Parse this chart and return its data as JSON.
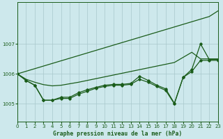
{
  "title": "Graphe pression niveau de la mer (hPa)",
  "bg_color": "#cde8ec",
  "grid_color": "#a8c8cc",
  "line_color": "#1a5c1a",
  "xlim": [
    0,
    23
  ],
  "ylim": [
    1004.4,
    1008.4
  ],
  "yticks": [
    1005,
    1006,
    1007
  ],
  "xticks": [
    0,
    1,
    2,
    3,
    4,
    5,
    6,
    7,
    8,
    9,
    10,
    11,
    12,
    13,
    14,
    15,
    16,
    17,
    18,
    19,
    20,
    21,
    22,
    23
  ],
  "series_diagonal": [
    1006.0,
    1006.087,
    1006.174,
    1006.261,
    1006.348,
    1006.435,
    1006.522,
    1006.609,
    1006.696,
    1006.783,
    1006.87,
    1006.957,
    1007.044,
    1007.13,
    1007.217,
    1007.304,
    1007.391,
    1007.478,
    1007.565,
    1007.652,
    1007.739,
    1007.826,
    1007.913,
    1008.1
  ],
  "series_smooth": [
    1006.0,
    1005.82,
    1005.72,
    1005.64,
    1005.6,
    1005.62,
    1005.67,
    1005.72,
    1005.78,
    1005.84,
    1005.9,
    1005.96,
    1006.02,
    1006.08,
    1006.14,
    1006.2,
    1006.26,
    1006.32,
    1006.38,
    1006.55,
    1006.72,
    1006.5,
    1006.5,
    1006.5
  ],
  "series_main": [
    1006.0,
    1005.78,
    1005.62,
    1005.12,
    1005.12,
    1005.22,
    1005.22,
    1005.37,
    1005.47,
    1005.55,
    1005.62,
    1005.65,
    1005.65,
    1005.68,
    1005.92,
    1005.78,
    1005.62,
    1005.5,
    1005.02,
    1005.88,
    1006.15,
    1007.0,
    1006.48,
    1006.48
  ],
  "series_dip": [
    1006.0,
    1005.78,
    1005.62,
    1005.12,
    1005.12,
    1005.18,
    1005.18,
    1005.32,
    1005.42,
    1005.52,
    1005.58,
    1005.62,
    1005.62,
    1005.65,
    1005.82,
    1005.72,
    1005.58,
    1005.45,
    1005.0,
    1005.88,
    1006.08,
    1006.45,
    1006.45,
    1006.45
  ]
}
